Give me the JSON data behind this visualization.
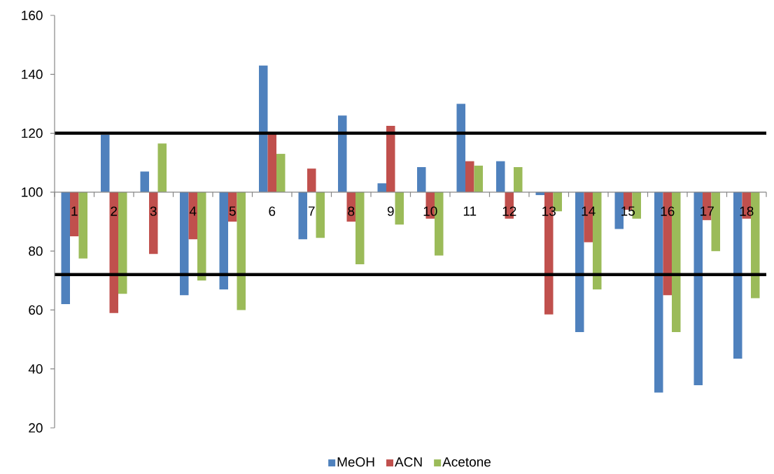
{
  "chart_data": {
    "type": "bar",
    "categories": [
      "1",
      "2",
      "3",
      "4",
      "5",
      "6",
      "7",
      "8",
      "9",
      "10",
      "11",
      "12",
      "13",
      "14",
      "15",
      "16",
      "17",
      "18"
    ],
    "series": [
      {
        "name": "MeOH",
        "color": "#4f81bd",
        "base": [
          100,
          100,
          100,
          100,
          100,
          100,
          100,
          100,
          100,
          100,
          100,
          100,
          100,
          100,
          100,
          100,
          100,
          100
        ],
        "values": [
          -38,
          19.5,
          7,
          -35,
          -33,
          43,
          -16,
          26,
          3,
          8.5,
          30,
          10.5,
          -1,
          -47.5,
          -12.5,
          -68,
          -65.5,
          -56.5
        ]
      },
      {
        "name": "ACN",
        "color": "#c0504d",
        "base": [
          100,
          100,
          100,
          100,
          100,
          100,
          100,
          100,
          100,
          100,
          100,
          100,
          100,
          100,
          100,
          100,
          100,
          100
        ],
        "values": [
          -15,
          -41,
          -21,
          -16,
          -10,
          20,
          8,
          -10,
          22.5,
          -9,
          10.5,
          -9,
          -41.5,
          -17,
          -6,
          -35,
          -9.5,
          -9
        ]
      },
      {
        "name": "Acetone",
        "color": "#9bbb59",
        "base": [
          100,
          100,
          100,
          100,
          100,
          100,
          100,
          100,
          100,
          100,
          100,
          100,
          100,
          100,
          100,
          100,
          100,
          100
        ],
        "values": [
          -22.5,
          -34.5,
          16.5,
          -30,
          -40,
          13,
          -15.5,
          -24.5,
          -11,
          -21.5,
          9,
          8.5,
          -6.5,
          -33,
          -9,
          -47.5,
          -20,
          -36
        ]
      }
    ],
    "ylim": [
      20,
      160
    ],
    "yticks": [
      20,
      40,
      60,
      80,
      100,
      120,
      140,
      160
    ],
    "ref_lines": [
      {
        "axis": "y",
        "value": 120,
        "color": "#000000"
      },
      {
        "axis": "y",
        "value": 72,
        "color": "#000000"
      }
    ],
    "legend": "bottom"
  }
}
